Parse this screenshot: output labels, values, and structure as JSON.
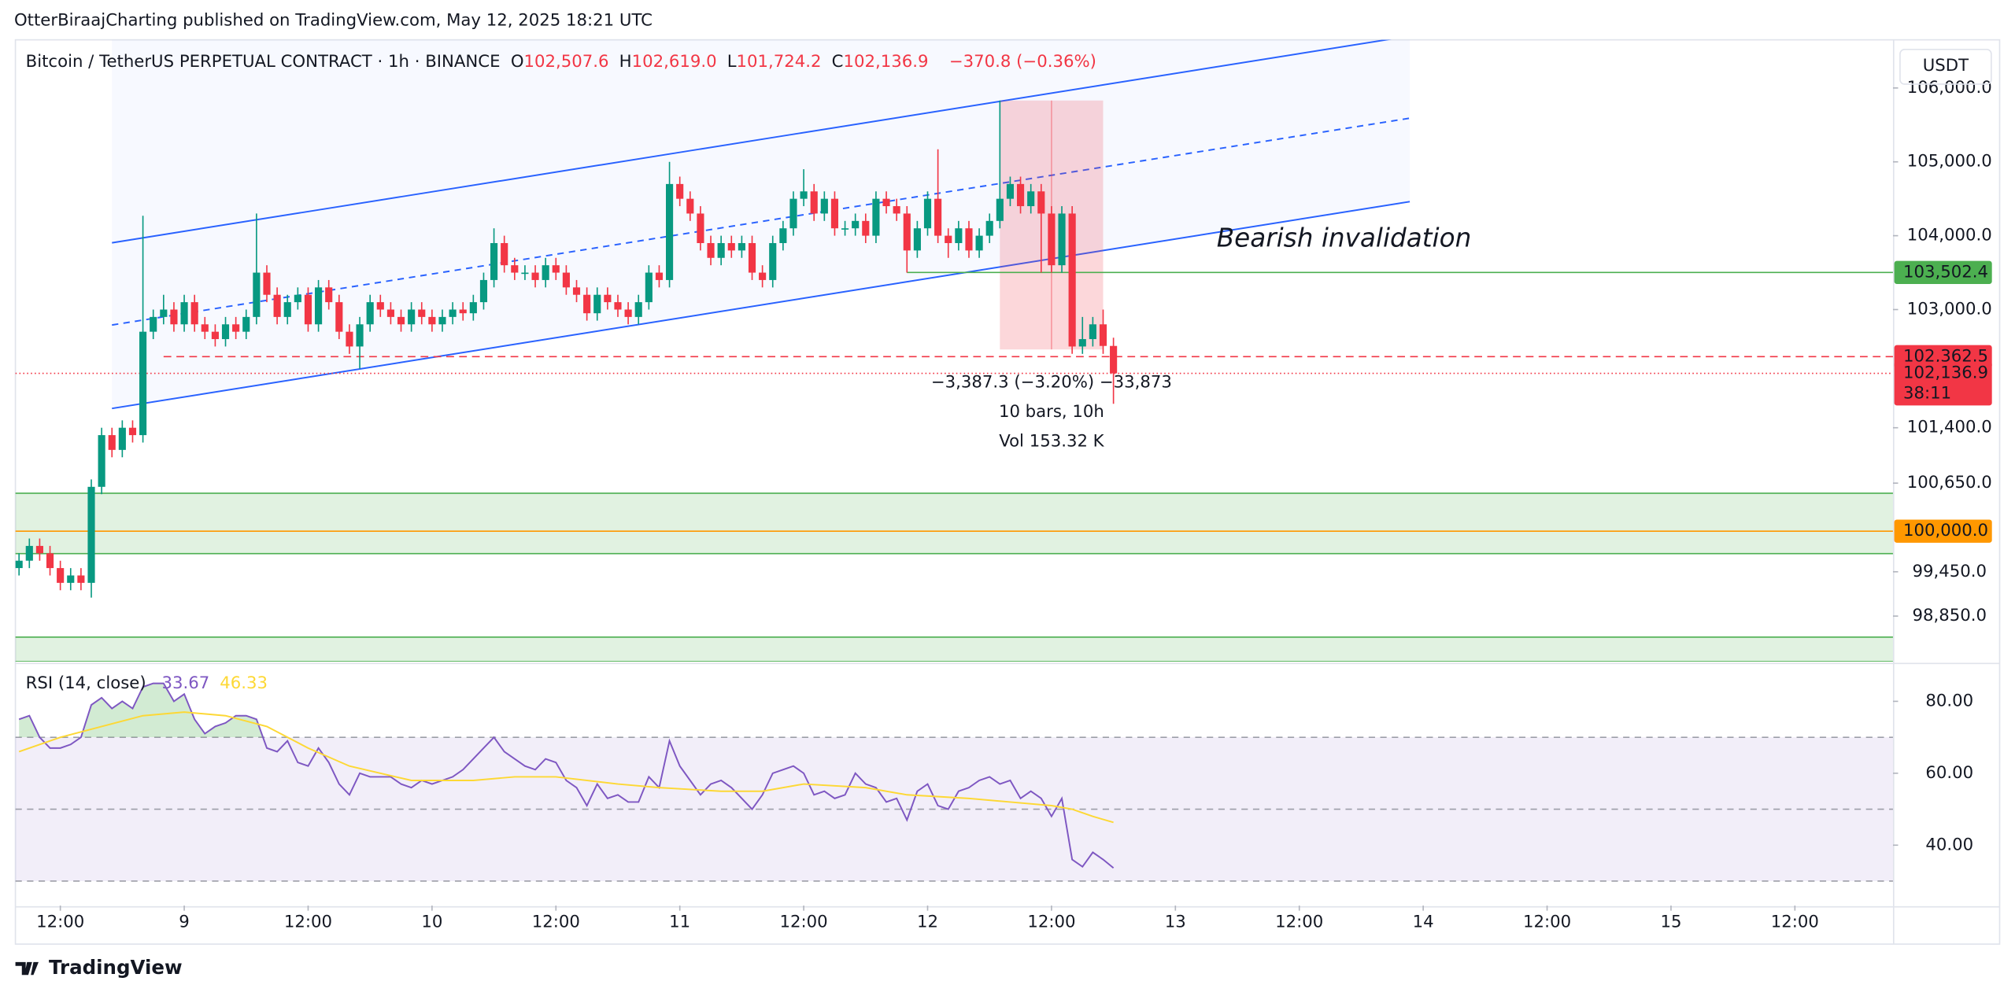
{
  "header": {
    "publisher": "OtterBiraajCharting published on TradingView.com, May 12, 2025 18:21 UTC",
    "brand": "TradingView",
    "currency_button": "USDT"
  },
  "chart_data": {
    "type": "candlestick",
    "symbol": "Bitcoin / TetherUS PERPETUAL CONTRACT · 1h · BINANCE",
    "ohlc_letters": [
      "O",
      "H",
      "L",
      "C"
    ],
    "ohlc_labels": [
      "102,507.6",
      "102,619.0",
      "101,724.2",
      "102,136.9"
    ],
    "change_label": "−370.8 (−0.36%)",
    "up_color": "#089981",
    "down_color": "#f23645",
    "x": [
      8,
      9,
      10,
      11,
      12,
      13,
      14,
      15,
      16,
      17,
      18,
      19,
      20,
      21,
      22,
      23,
      24,
      25,
      26,
      27,
      28,
      29,
      30,
      31,
      32,
      33,
      34,
      35,
      36,
      37,
      38,
      39,
      40,
      41,
      42,
      43,
      44,
      45,
      46,
      47,
      48,
      49,
      50,
      51,
      52,
      53,
      54,
      55,
      56,
      57,
      58,
      59,
      60,
      61,
      62,
      63,
      64,
      65,
      66,
      67,
      68,
      69,
      70,
      71,
      72,
      73,
      74,
      75,
      76,
      77,
      78,
      79,
      80,
      81,
      82,
      83,
      84,
      85,
      86,
      87,
      88,
      89,
      90,
      91,
      92,
      93,
      94,
      95,
      96,
      97,
      98,
      99,
      100,
      101,
      102,
      103,
      104,
      105,
      106,
      107,
      108,
      109,
      110,
      111,
      112,
      113,
      114
    ],
    "ohlc": [
      [
        99500,
        99700,
        99400,
        99600
      ],
      [
        99600,
        99900,
        99500,
        99800
      ],
      [
        99800,
        99900,
        99600,
        99700
      ],
      [
        99700,
        99800,
        99400,
        99500
      ],
      [
        99500,
        99600,
        99200,
        99300
      ],
      [
        99300,
        99500,
        99200,
        99400
      ],
      [
        99400,
        99500,
        99200,
        99300
      ],
      [
        99300,
        100700,
        99100,
        100600
      ],
      [
        100600,
        101400,
        100500,
        101300
      ],
      [
        101300,
        101400,
        101000,
        101100
      ],
      [
        101100,
        101500,
        101000,
        101400
      ],
      [
        101400,
        101500,
        101200,
        101300
      ],
      [
        101300,
        104270,
        101200,
        102700
      ],
      [
        102700,
        103000,
        102600,
        102900
      ],
      [
        102900,
        103200,
        102800,
        103000
      ],
      [
        103000,
        103100,
        102700,
        102800
      ],
      [
        102800,
        103200,
        102700,
        103100
      ],
      [
        103100,
        103200,
        102700,
        102800
      ],
      [
        102800,
        102900,
        102600,
        102700
      ],
      [
        102700,
        102800,
        102500,
        102600
      ],
      [
        102600,
        102900,
        102500,
        102800
      ],
      [
        102800,
        102900,
        102600,
        102700
      ],
      [
        102700,
        103000,
        102600,
        102900
      ],
      [
        102900,
        104300,
        102800,
        103500
      ],
      [
        103500,
        103600,
        103100,
        103200
      ],
      [
        103200,
        103300,
        102800,
        102900
      ],
      [
        102900,
        103200,
        102800,
        103100
      ],
      [
        103100,
        103300,
        103000,
        103200
      ],
      [
        103200,
        103300,
        102700,
        102800
      ],
      [
        102800,
        103400,
        102700,
        103300
      ],
      [
        103300,
        103400,
        103000,
        103100
      ],
      [
        103100,
        103200,
        102600,
        102700
      ],
      [
        102700,
        102800,
        102400,
        102500
      ],
      [
        102500,
        102900,
        102200,
        102800
      ],
      [
        102800,
        103200,
        102700,
        103100
      ],
      [
        103100,
        103200,
        102900,
        103000
      ],
      [
        103000,
        103100,
        102800,
        102900
      ],
      [
        102900,
        103000,
        102700,
        102800
      ],
      [
        102800,
        103100,
        102700,
        103000
      ],
      [
        103000,
        103100,
        102800,
        102900
      ],
      [
        102900,
        103000,
        102700,
        102800
      ],
      [
        102800,
        103000,
        102700,
        102900
      ],
      [
        102900,
        103100,
        102800,
        103000
      ],
      [
        103000,
        103100,
        102850,
        102950
      ],
      [
        102950,
        103200,
        102850,
        103100
      ],
      [
        103100,
        103500,
        103000,
        103400
      ],
      [
        103400,
        104100,
        103300,
        103900
      ],
      [
        103900,
        104000,
        103500,
        103600
      ],
      [
        103600,
        103700,
        103400,
        103500
      ],
      [
        103500,
        103600,
        103400,
        103500
      ],
      [
        103500,
        103600,
        103300,
        103400
      ],
      [
        103400,
        103700,
        103300,
        103600
      ],
      [
        103600,
        103700,
        103400,
        103500
      ],
      [
        103500,
        103600,
        103200,
        103300
      ],
      [
        103300,
        103400,
        103100,
        103200
      ],
      [
        103200,
        103300,
        102850,
        102950
      ],
      [
        102950,
        103300,
        102850,
        103200
      ],
      [
        103200,
        103300,
        103000,
        103100
      ],
      [
        103100,
        103200,
        102900,
        103000
      ],
      [
        103000,
        103100,
        102800,
        102900
      ],
      [
        102900,
        103200,
        102800,
        103100
      ],
      [
        103100,
        103600,
        103000,
        103500
      ],
      [
        103500,
        103600,
        103300,
        103400
      ],
      [
        103400,
        105000,
        103300,
        104700
      ],
      [
        104700,
        104800,
        104400,
        104500
      ],
      [
        104500,
        104600,
        104200,
        104300
      ],
      [
        104300,
        104400,
        103800,
        103900
      ],
      [
        103900,
        104000,
        103600,
        103700
      ],
      [
        103700,
        104000,
        103600,
        103900
      ],
      [
        103900,
        104000,
        103700,
        103800
      ],
      [
        103800,
        104000,
        103700,
        103900
      ],
      [
        103900,
        104000,
        103400,
        103500
      ],
      [
        103500,
        103600,
        103300,
        103400
      ],
      [
        103400,
        104000,
        103300,
        103900
      ],
      [
        103900,
        104200,
        103800,
        104100
      ],
      [
        104100,
        104600,
        104000,
        104500
      ],
      [
        104500,
        104900,
        104400,
        104600
      ],
      [
        104600,
        104700,
        104200,
        104300
      ],
      [
        104300,
        104600,
        104200,
        104500
      ],
      [
        104500,
        104600,
        104000,
        104100
      ],
      [
        104100,
        104200,
        104000,
        104100
      ],
      [
        104100,
        104300,
        104000,
        104200
      ],
      [
        104200,
        104300,
        103900,
        104000
      ],
      [
        104000,
        104600,
        103900,
        104500
      ],
      [
        104500,
        104600,
        104300,
        104400
      ],
      [
        104400,
        104500,
        104200,
        104300
      ],
      [
        104300,
        104400,
        103500,
        103800
      ],
      [
        103800,
        104200,
        103700,
        104100
      ],
      [
        104100,
        104600,
        104000,
        104500
      ],
      [
        104500,
        105170,
        103900,
        104000
      ],
      [
        104000,
        104100,
        103700,
        103900
      ],
      [
        103900,
        104200,
        103800,
        104100
      ],
      [
        104100,
        104200,
        103700,
        103800
      ],
      [
        103800,
        104100,
        103700,
        104000
      ],
      [
        104000,
        104300,
        103900,
        104200
      ],
      [
        104200,
        105830,
        104100,
        104500
      ],
      [
        104500,
        104800,
        104400,
        104700
      ],
      [
        104700,
        104800,
        104300,
        104400
      ],
      [
        104400,
        104700,
        104300,
        104600
      ],
      [
        104600,
        104700,
        103500,
        104300
      ],
      [
        104300,
        104400,
        103500,
        103600
      ],
      [
        103600,
        104400,
        103500,
        104300
      ],
      [
        104300,
        104400,
        102400,
        102500
      ],
      [
        102500,
        102900,
        102400,
        102600
      ],
      [
        102600,
        102900,
        102500,
        102800
      ],
      [
        102800,
        103000,
        102400,
        102507.6
      ],
      [
        102507.6,
        102619.0,
        101724.2,
        102136.9
      ]
    ],
    "xlim": [
      7.65,
      189.5
    ],
    "xticks": [
      {
        "value": 12,
        "label": "12:00"
      },
      {
        "value": 24,
        "label": "9"
      },
      {
        "value": 36,
        "label": "12:00"
      },
      {
        "value": 48,
        "label": "10"
      },
      {
        "value": 60,
        "label": "12:00"
      },
      {
        "value": 72,
        "label": "11"
      },
      {
        "value": 84,
        "label": "12:00"
      },
      {
        "value": 96,
        "label": "12"
      },
      {
        "value": 108,
        "label": "12:00"
      },
      {
        "value": 120,
        "label": "13"
      },
      {
        "value": 132,
        "label": "12:00"
      },
      {
        "value": 144,
        "label": "14"
      },
      {
        "value": 156,
        "label": "12:00"
      },
      {
        "value": 168,
        "label": "15"
      },
      {
        "value": 180,
        "label": "12:00"
      }
    ],
    "ylim": [
      98235,
      106652
    ],
    "yticks": [
      {
        "value": 106000,
        "label": "106,000.0"
      },
      {
        "value": 105000,
        "label": "105,000.0"
      },
      {
        "value": 104000,
        "label": "104,000.0"
      },
      {
        "value": 103000,
        "label": "103,000.0"
      },
      {
        "value": 101400,
        "label": "101,400.0"
      },
      {
        "value": 100650,
        "label": "100,650.0"
      },
      {
        "value": 99450,
        "label": "99,450.0"
      },
      {
        "value": 98850,
        "label": "98,850.0"
      }
    ],
    "channel": {
      "color": "#2962ff",
      "x": [
        17,
        142.7
      ],
      "upper": [
        103904,
        106703
      ],
      "middle": [
        102791,
        105591
      ],
      "lower": [
        101661,
        104461
      ]
    },
    "zones": [
      {
        "from": 99696,
        "to": 100513,
        "color": "#4caf50"
      },
      {
        "from": 98235,
        "to": 98565,
        "color": "#4caf50"
      }
    ],
    "levels": [
      {
        "value": 103502.4,
        "from": 94,
        "color": "#4caf50",
        "label": "103,502.4"
      },
      {
        "value": 102362.5,
        "from": 22,
        "color": "#f23645",
        "label": "102,362.5",
        "dashed": true
      },
      {
        "value": 100000,
        "from": 7.65,
        "color": "#ff9800",
        "label": "100,000.0"
      },
      {
        "value": 102136.9,
        "from": 7.65,
        "color": "#f23645",
        "label": "102,136.9",
        "dotted": true,
        "countdown": "38:11"
      }
    ],
    "annotation": {
      "text": "Bearish invalidation",
      "x": 124,
      "value": 103950,
      "color": "#f23645"
    },
    "measure": {
      "x": [
        103,
        113
      ],
      "values": [
        105830,
        102460
      ],
      "lines": [
        "−3,387.3 (−3.20%) −33,873",
        "10 bars, 10h",
        "Vol 153.32 K"
      ]
    },
    "rsi": {
      "title": "RSI (14, close)",
      "ylim": [
        23.2,
        90
      ],
      "yticks": [
        {
          "value": 80,
          "label": "80.00"
        },
        {
          "value": 60,
          "label": "60.00"
        },
        {
          "value": 40,
          "label": "40.00"
        }
      ],
      "bands": [
        70,
        50,
        30
      ],
      "series": [
        {
          "name": "RSI",
          "color": "#7e57c2",
          "value_label": "33.67",
          "values": [
            75,
            76,
            70,
            67,
            67,
            68,
            70,
            79,
            81,
            78,
            80,
            78,
            84,
            85,
            85,
            80,
            82,
            75,
            71,
            73,
            74,
            76,
            76,
            75,
            67,
            66,
            69,
            63,
            62,
            67,
            63,
            57,
            54,
            60,
            59,
            59,
            59,
            57,
            56,
            58,
            57,
            58,
            59,
            61,
            64,
            67,
            70,
            66,
            64,
            62,
            61,
            64,
            63,
            58,
            56,
            51,
            57,
            53,
            54,
            52,
            52,
            59,
            56,
            69,
            62,
            58,
            54,
            57,
            58,
            56,
            53,
            50,
            54,
            60,
            61,
            62,
            60,
            54,
            55,
            53,
            54,
            60,
            57,
            56,
            52,
            53,
            47,
            55,
            57,
            51,
            50,
            55,
            56,
            58,
            59,
            57,
            58,
            53,
            55,
            53,
            48,
            53,
            36,
            34,
            38,
            36,
            33.67
          ]
        },
        {
          "name": "RSI MA",
          "color": "#fdd835",
          "value_label": "46.33",
          "x": [
            8,
            12,
            16,
            20,
            24,
            28,
            32,
            36,
            40,
            46,
            52,
            56,
            60,
            66,
            70,
            76,
            80,
            84,
            90,
            94,
            100,
            104,
            108,
            110,
            112,
            114
          ],
          "values": [
            66,
            70,
            73,
            76,
            77,
            76,
            73,
            67,
            62,
            58,
            58,
            59,
            59,
            57,
            56,
            55,
            55,
            57,
            56,
            54,
            53,
            52,
            51,
            50,
            48,
            46.33
          ]
        }
      ]
    }
  }
}
